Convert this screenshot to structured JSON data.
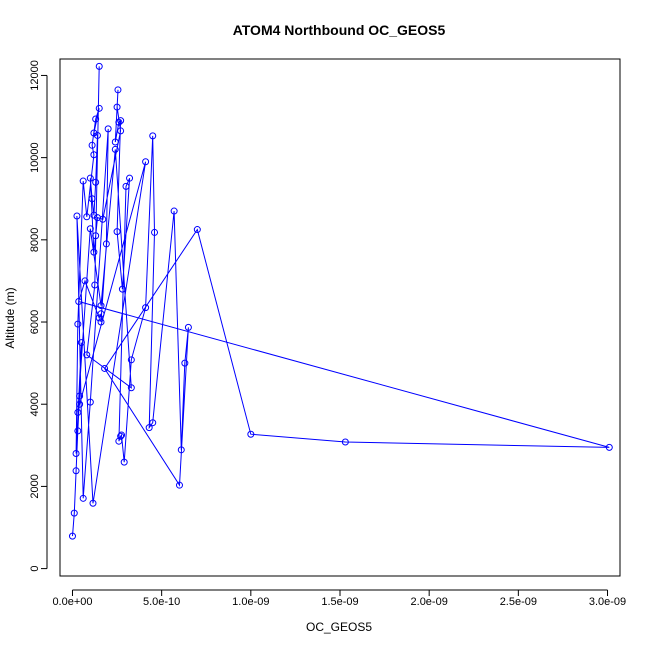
{
  "chart_data": {
    "type": "scatter",
    "title": "ATOM4 Northbound OC_GEOS5",
    "xlabel": "OC_GEOS5",
    "ylabel": "Altitude (m)",
    "xlim": [
      -7e-11,
      3.07e-09
    ],
    "ylim": [
      -180,
      12400
    ],
    "x_ticks": [
      0,
      5e-10,
      1e-09,
      1.5e-09,
      2e-09,
      2.5e-09,
      3e-09
    ],
    "x_tick_labels": [
      "0.0e+00",
      "5.0e-10",
      "1.0e-09",
      "1.5e-09",
      "2.0e-09",
      "2.5e-09",
      "3.0e-09"
    ],
    "y_ticks": [
      0,
      2000,
      4000,
      6000,
      8000,
      10000,
      12000
    ],
    "y_tick_labels": [
      "0",
      "2000",
      "4000",
      "6000",
      "8000",
      "10000",
      "12000"
    ],
    "color": "#0000ff",
    "grid": false,
    "legend": "none",
    "series": [
      {
        "x": [
          0.0,
          1e-11,
          2e-11,
          3e-11,
          4e-11,
          5e-11,
          2e-11,
          3e-11,
          6e-11,
          8e-11,
          1.2e-10,
          1.1e-10,
          1.3e-10,
          1.5e-10,
          1.2e-10,
          1.4e-10,
          1.3e-10,
          1.2e-10,
          1.1e-10,
          1e-10,
          1.2e-10,
          1.3e-10,
          1.4e-10,
          1.7e-10,
          2.7e-10,
          2.5e-10,
          2.55e-10,
          2.4e-10,
          2.6e-10,
          2.7e-10,
          2.5e-10,
          2.8e-10,
          3.2e-10,
          3e-10,
          2.6e-10,
          2.7e-10,
          2.75e-10,
          2.9e-10,
          3.3e-10,
          4.1e-10,
          4.5e-10,
          4.6e-10,
          4.3e-10,
          4.5e-10,
          5.7e-10,
          6.1e-10,
          6.3e-10,
          6.5e-10,
          6e-10,
          1.8e-10,
          7e-10,
          1e-09,
          1.53e-09,
          3.01e-09,
          3.5e-11,
          7e-11,
          1.5e-10,
          1.6e-10,
          1.6e-10,
          1.9e-10,
          2e-10,
          1e-10,
          6e-11,
          2.5e-11,
          1.15e-10,
          4.1e-10,
          4e-11,
          3e-11,
          1e-10,
          1.6e-10,
          2.4e-10,
          3.3e-10,
          8e-11,
          1.25e-10,
          1.5e-10
        ],
        "y": [
          790,
          1350,
          2380,
          3350,
          4200,
          5500,
          2800,
          5950,
          9430,
          8560,
          10070,
          10300,
          10940,
          11200,
          10600,
          10540,
          9400,
          8600,
          9000,
          9500,
          7700,
          8100,
          8540,
          8500,
          10650,
          11230,
          11650,
          10380,
          10860,
          10900,
          8200,
          6800,
          9500,
          9300,
          3100,
          3220,
          3250,
          2590,
          5080,
          6350,
          10530,
          8180,
          3430,
          3550,
          8700,
          2890,
          5000,
          5870,
          2030,
          4870,
          8250,
          3270,
          3080,
          2950,
          6500,
          7000,
          6100,
          6200,
          6000,
          7900,
          10700,
          4050,
          1710,
          8580,
          1590,
          9900,
          4000,
          3800,
          8270,
          6400,
          10200,
          4400,
          5200,
          6900,
          12220
        ]
      }
    ]
  }
}
